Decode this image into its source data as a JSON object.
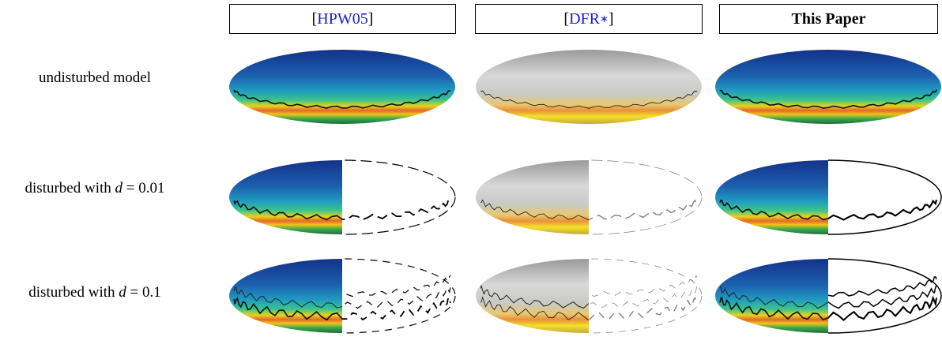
{
  "columns": [
    {
      "open": "[",
      "link": "HPW05",
      "close": "]"
    },
    {
      "open": "[",
      "link": "DFR",
      "sup": "∗",
      "close": "]"
    },
    {
      "text": "This Paper"
    }
  ],
  "rows": [
    {
      "text": "undisturbed model"
    },
    {
      "text": "disturbed with",
      "var": "d",
      "eq": "= 0.01"
    },
    {
      "text": "disturbed with",
      "var": "d",
      "eq": "= 0.1"
    }
  ]
}
